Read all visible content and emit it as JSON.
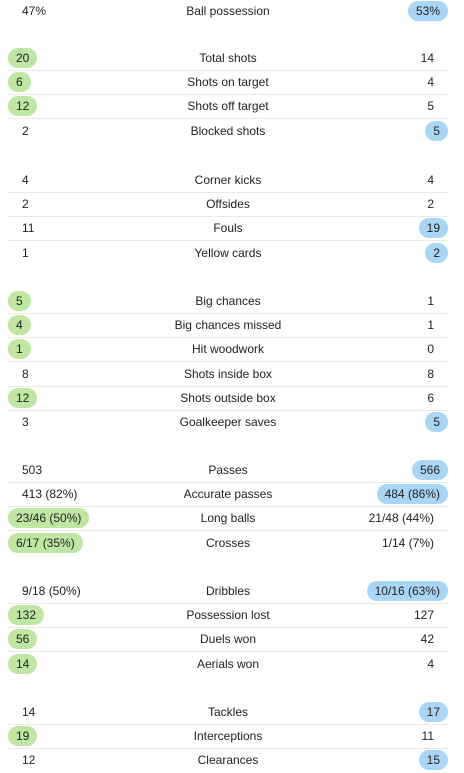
{
  "groups": [
    {
      "rows": [
        {
          "label": "Ball possession",
          "home": "47%",
          "away": "53%",
          "leader": "away"
        }
      ]
    },
    {
      "rows": [
        {
          "label": "Total shots",
          "home": "20",
          "away": "14",
          "leader": "home"
        },
        {
          "label": "Shots on target",
          "home": "6",
          "away": "4",
          "leader": "home"
        },
        {
          "label": "Shots off target",
          "home": "12",
          "away": "5",
          "leader": "home"
        },
        {
          "label": "Blocked shots",
          "home": "2",
          "away": "5",
          "leader": "away"
        }
      ]
    },
    {
      "rows": [
        {
          "label": "Corner kicks",
          "home": "4",
          "away": "4",
          "leader": "none"
        },
        {
          "label": "Offsides",
          "home": "2",
          "away": "2",
          "leader": "none"
        },
        {
          "label": "Fouls",
          "home": "11",
          "away": "19",
          "leader": "away"
        },
        {
          "label": "Yellow cards",
          "home": "1",
          "away": "2",
          "leader": "away"
        }
      ]
    },
    {
      "rows": [
        {
          "label": "Big chances",
          "home": "5",
          "away": "1",
          "leader": "home"
        },
        {
          "label": "Big chances missed",
          "home": "4",
          "away": "1",
          "leader": "home"
        },
        {
          "label": "Hit woodwork",
          "home": "1",
          "away": "0",
          "leader": "home"
        },
        {
          "label": "Shots inside box",
          "home": "8",
          "away": "8",
          "leader": "none"
        },
        {
          "label": "Shots outside box",
          "home": "12",
          "away": "6",
          "leader": "home"
        },
        {
          "label": "Goalkeeper saves",
          "home": "3",
          "away": "5",
          "leader": "away"
        }
      ]
    },
    {
      "rows": [
        {
          "label": "Passes",
          "home": "503",
          "away": "566",
          "leader": "away"
        },
        {
          "label": "Accurate passes",
          "home": "413 (82%)",
          "away": "484 (86%)",
          "leader": "away"
        },
        {
          "label": "Long balls",
          "home": "23/46 (50%)",
          "away": "21/48 (44%)",
          "leader": "home"
        },
        {
          "label": "Crosses",
          "home": "6/17 (35%)",
          "away": "1/14 (7%)",
          "leader": "home"
        }
      ]
    },
    {
      "rows": [
        {
          "label": "Dribbles",
          "home": "9/18 (50%)",
          "away": "10/16 (63%)",
          "leader": "away"
        },
        {
          "label": "Possession lost",
          "home": "132",
          "away": "127",
          "leader": "home"
        },
        {
          "label": "Duels won",
          "home": "56",
          "away": "42",
          "leader": "home"
        },
        {
          "label": "Aerials won",
          "home": "14",
          "away": "4",
          "leader": "home"
        }
      ]
    },
    {
      "rows": [
        {
          "label": "Tackles",
          "home": "14",
          "away": "17",
          "leader": "away"
        },
        {
          "label": "Interceptions",
          "home": "19",
          "away": "11",
          "leader": "home"
        },
        {
          "label": "Clearances",
          "home": "12",
          "away": "15",
          "leader": "away"
        }
      ]
    }
  ],
  "colors": {
    "home_highlight": "#bfe6a3",
    "away_highlight": "#a9d5f7",
    "separator": "#e9e9e9"
  }
}
